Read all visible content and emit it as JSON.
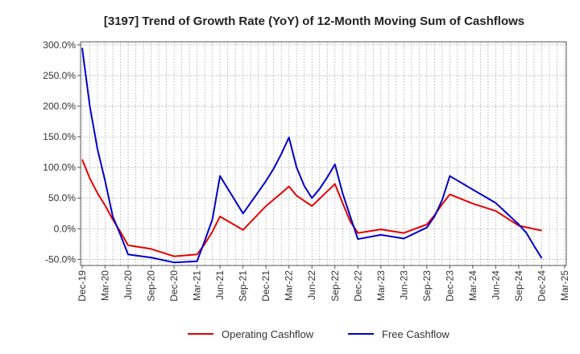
{
  "chart_data": {
    "type": "line",
    "title": "[3197]  Trend of Growth Rate (YoY) of 12-Month Moving Sum of Cashflows",
    "xlabel": "",
    "ylabel": "",
    "ylim": [
      -60,
      305
    ],
    "y_ticks": [
      300,
      250,
      200,
      150,
      100,
      50,
      0,
      -50
    ],
    "y_tick_labels": [
      "300.0%",
      "250.0%",
      "200.0%",
      "150.0%",
      "100.0%",
      "50.0%",
      "0.0%",
      "-50.0%"
    ],
    "x_tick_labels": [
      "Dec-19",
      "Mar-20",
      "Jun-20",
      "Sep-20",
      "Dec-20",
      "Mar-21",
      "Jun-21",
      "Sep-21",
      "Dec-21",
      "Mar-22",
      "Jun-22",
      "Sep-22",
      "Dec-22",
      "Mar-23",
      "Jun-23",
      "Sep-23",
      "Dec-23",
      "Mar-24",
      "Jun-24",
      "Sep-24",
      "Dec-24",
      "Mar-25"
    ],
    "grid": true,
    "legend_position": "bottom",
    "series": [
      {
        "name": "Operating Cashflow",
        "color": "#e60000",
        "points": [
          [
            "Dec-19",
            113
          ],
          [
            "Jan-20",
            82
          ],
          [
            "Feb-20",
            58
          ],
          [
            "Mar-20",
            38
          ],
          [
            "Apr-20",
            15
          ],
          [
            "May-20",
            -5
          ],
          [
            "Jun-20",
            -27
          ],
          [
            "Sep-20",
            -33
          ],
          [
            "Dec-20",
            -45
          ],
          [
            "Mar-21",
            -42
          ],
          [
            "Apr-21",
            -25
          ],
          [
            "May-21",
            -5
          ],
          [
            "Jun-21",
            20
          ],
          [
            "Sep-21",
            -2
          ],
          [
            "Dec-21",
            37
          ],
          [
            "Feb-22",
            58
          ],
          [
            "Mar-22",
            69
          ],
          [
            "Apr-22",
            54
          ],
          [
            "Jun-22",
            37
          ],
          [
            "Sep-22",
            73
          ],
          [
            "Oct-22",
            42
          ],
          [
            "Nov-22",
            12
          ],
          [
            "Dec-22",
            -7
          ],
          [
            "Mar-23",
            -1
          ],
          [
            "Jun-23",
            -7
          ],
          [
            "Sep-23",
            7
          ],
          [
            "Oct-23",
            22
          ],
          [
            "Nov-23",
            40
          ],
          [
            "Dec-23",
            56
          ],
          [
            "Mar-24",
            41
          ],
          [
            "Jun-24",
            29
          ],
          [
            "Sep-24",
            5
          ],
          [
            "Dec-24",
            -3
          ]
        ]
      },
      {
        "name": "Free Cashflow",
        "color": "#0000cc",
        "points": [
          [
            "Dec-19",
            295
          ],
          [
            "Jan-20",
            200
          ],
          [
            "Feb-20",
            130
          ],
          [
            "Mar-20",
            78
          ],
          [
            "Apr-20",
            20
          ],
          [
            "May-20",
            -10
          ],
          [
            "Jun-20",
            -42
          ],
          [
            "Sep-20",
            -47
          ],
          [
            "Dec-20",
            -55
          ],
          [
            "Mar-21",
            -53
          ],
          [
            "Apr-21",
            -20
          ],
          [
            "May-21",
            15
          ],
          [
            "Jun-21",
            86
          ],
          [
            "Sep-21",
            25
          ],
          [
            "Nov-21",
            60
          ],
          [
            "Dec-21",
            78
          ],
          [
            "Jan-22",
            98
          ],
          [
            "Feb-22",
            122
          ],
          [
            "Mar-22",
            149
          ],
          [
            "Apr-22",
            100
          ],
          [
            "May-22",
            70
          ],
          [
            "Jun-22",
            50
          ],
          [
            "Jul-22",
            65
          ],
          [
            "Aug-22",
            84
          ],
          [
            "Sep-22",
            105
          ],
          [
            "Oct-22",
            58
          ],
          [
            "Nov-22",
            20
          ],
          [
            "Dec-22",
            -17
          ],
          [
            "Mar-23",
            -10
          ],
          [
            "Jun-23",
            -16
          ],
          [
            "Sep-23",
            2
          ],
          [
            "Oct-23",
            20
          ],
          [
            "Nov-23",
            47
          ],
          [
            "Dec-23",
            86
          ],
          [
            "Mar-24",
            64
          ],
          [
            "Jun-24",
            42
          ],
          [
            "Sep-24",
            7
          ],
          [
            "Oct-24",
            -7
          ],
          [
            "Nov-24",
            -28
          ],
          [
            "Dec-24",
            -48
          ]
        ]
      }
    ]
  }
}
